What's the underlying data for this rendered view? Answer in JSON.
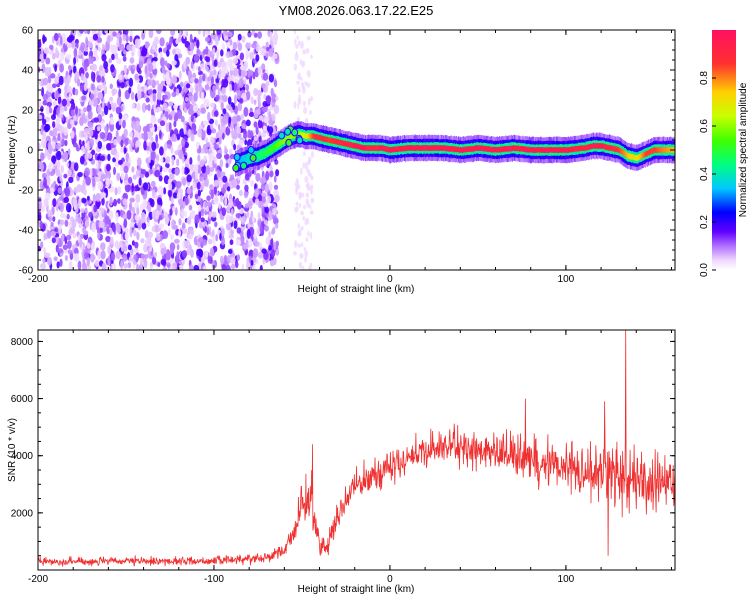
{
  "title": "YM08.2026.063.17.22.E25",
  "colors": {
    "snr_line": "#f03030",
    "axis": "#000000",
    "spectrum_colormap": [
      "#ffffff",
      "#f0d8ff",
      "#b070ff",
      "#6000ff",
      "#0000ff",
      "#00e0ff",
      "#00ff60",
      "#c8ff00",
      "#ffd000",
      "#ff3030",
      "#ff1060"
    ]
  },
  "chart_data": [
    {
      "type": "heatmap",
      "title": "YM08.2026.063.17.22.E25",
      "xlabel": "Height of straight line (km)",
      "ylabel": "Frequency (Hz)",
      "xlim": [
        -200,
        162
      ],
      "ylim": [
        -60,
        60
      ],
      "x_ticks": [
        -200,
        -100,
        0,
        100
      ],
      "y_ticks": [
        -60,
        -40,
        -20,
        0,
        20,
        40,
        60
      ],
      "colorbar": {
        "label": "Normalized spectral amplitude",
        "range": [
          0,
          1
        ],
        "ticks": [
          0.0,
          0.2,
          0.4,
          0.6,
          0.8
        ]
      },
      "noise_region": {
        "x_range": [
          -200,
          -64
        ],
        "y_range": [
          -60,
          60
        ]
      },
      "faint_column": {
        "x_range": [
          -54,
          -44
        ]
      },
      "ridge": {
        "x": [
          -88,
          -80,
          -75,
          -70,
          -65,
          -60,
          -56,
          -52,
          -48,
          -44,
          -40,
          -35,
          -30,
          -25,
          -20,
          -15,
          -10,
          -5,
          0,
          10,
          20,
          30,
          40,
          50,
          60,
          70,
          80,
          90,
          100,
          110,
          115,
          120,
          125,
          130,
          135,
          140,
          145,
          150,
          155,
          162
        ],
        "y": [
          -7,
          -4,
          -3,
          -1,
          2,
          5,
          7,
          8,
          7,
          7,
          6,
          5,
          4,
          3,
          2,
          1,
          1,
          1,
          0,
          1,
          1,
          1,
          0,
          1,
          0,
          1,
          0,
          0,
          0,
          1,
          2,
          2,
          1,
          0,
          -3,
          -4,
          -2,
          0,
          0,
          0
        ],
        "amplitude": [
          0.3,
          0.4,
          0.45,
          0.5,
          0.55,
          0.6,
          0.6,
          0.6,
          0.7,
          0.85,
          0.9,
          0.85,
          0.9,
          0.9,
          0.95,
          0.95,
          0.9,
          0.95,
          0.95,
          0.95,
          0.95,
          0.95,
          0.95,
          0.95,
          0.95,
          0.95,
          0.95,
          0.95,
          0.95,
          0.9,
          0.95,
          0.95,
          0.9,
          0.85,
          0.75,
          0.7,
          0.85,
          0.85,
          0.8,
          0.75
        ]
      }
    },
    {
      "type": "line",
      "xlabel": "Height of straight line (km)",
      "ylabel": "SNR (10 * v/v)",
      "xlim": [
        -200,
        162
      ],
      "ylim": [
        0,
        8400
      ],
      "x_ticks": [
        -200,
        -100,
        0,
        100
      ],
      "y_ticks": [
        2000,
        4000,
        6000,
        8000
      ],
      "series": [
        {
          "envelope_x": [
            -200,
            -150,
            -100,
            -70,
            -60,
            -55,
            -50,
            -45,
            -42,
            -40,
            -35,
            -30,
            -25,
            -20,
            -10,
            0,
            10,
            20,
            30,
            40,
            50,
            60,
            70,
            80,
            90,
            100,
            110,
            120,
            130,
            140,
            150,
            162
          ],
          "envelope_mean": [
            300,
            300,
            320,
            450,
            700,
            1300,
            2200,
            2600,
            1400,
            900,
            900,
            1800,
            2500,
            2900,
            3300,
            3600,
            3900,
            4150,
            4300,
            4300,
            4200,
            4000,
            4050,
            3900,
            3750,
            3650,
            3500,
            3400,
            3250,
            3200,
            3000,
            3000
          ],
          "envelope_spread": [
            150,
            150,
            150,
            180,
            250,
            400,
            800,
            900,
            600,
            400,
            500,
            500,
            600,
            600,
            600,
            600,
            600,
            600,
            650,
            650,
            650,
            700,
            800,
            900,
            900,
            800,
            900,
            1100,
            1300,
            1200,
            1000,
            1000
          ],
          "spikes": [
            {
              "x": -44,
              "y": 4400
            },
            {
              "x": 77,
              "y": 6000
            },
            {
              "x": 122,
              "y": 5900
            },
            {
              "x": 134,
              "y": 8400
            },
            {
              "x": 124,
              "y": 500
            }
          ]
        }
      ]
    }
  ]
}
